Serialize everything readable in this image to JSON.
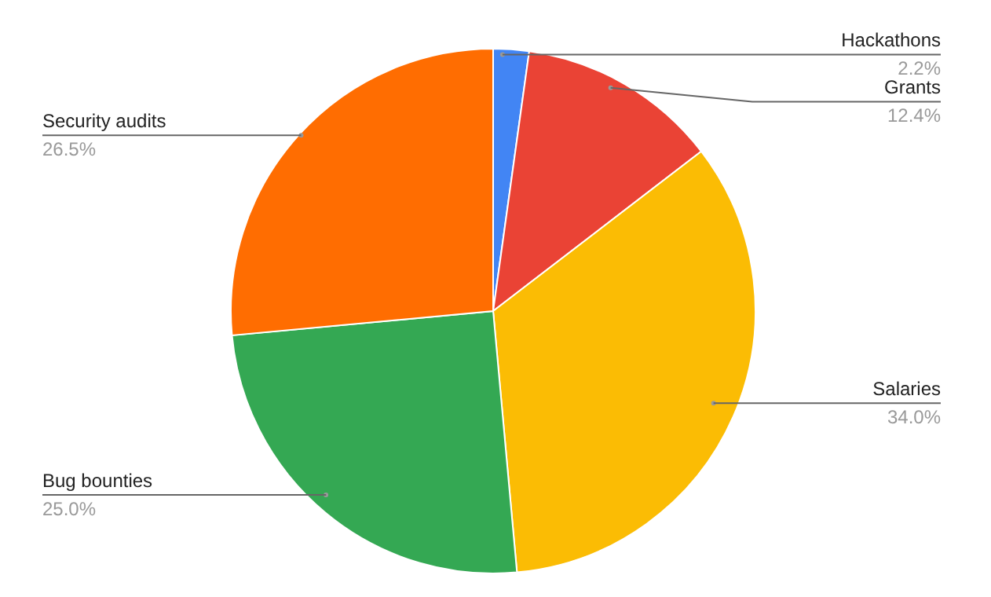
{
  "chart_data": {
    "type": "pie",
    "categories": [
      "Hackathons",
      "Grants",
      "Salaries",
      "Bug bounties",
      "Security audits"
    ],
    "values": [
      2.2,
      12.4,
      34.0,
      25.0,
      26.5
    ],
    "value_labels": [
      "2.2%",
      "12.4%",
      "34.0%",
      "25.0%",
      "26.5%"
    ],
    "colors": [
      "#4285f4",
      "#ea4335",
      "#fbbc04",
      "#34a853",
      "#ff6d01"
    ],
    "legend": false
  }
}
